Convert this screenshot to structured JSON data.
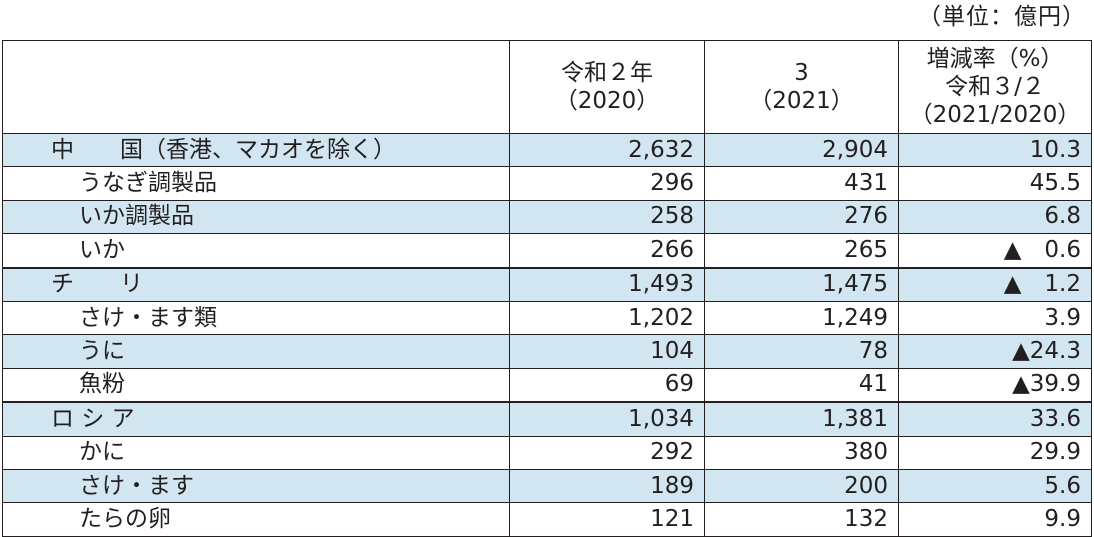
{
  "unit_label": "（単位：億円）",
  "header": {
    "col_2020": [
      "令和２年",
      "（2020）"
    ],
    "col_2021": [
      "3",
      "（2021）"
    ],
    "col_rate": [
      "増減率（%）",
      "令和３/２",
      "（2021/2020）"
    ]
  },
  "rows": [
    {
      "name": "中　　国（香港、マカオを除く）",
      "v2020": "2,632",
      "v2021": "2,904",
      "rate": "10.3",
      "shade": true,
      "sub": false
    },
    {
      "name": "うなぎ調製品",
      "v2020": "296",
      "v2021": "431",
      "rate": "45.5",
      "shade": false,
      "sub": true
    },
    {
      "name": "いか調製品",
      "v2020": "258",
      "v2021": "276",
      "rate": "6.8",
      "shade": true,
      "sub": true
    },
    {
      "name": "いか",
      "v2020": "266",
      "v2021": "265",
      "rate": "▲　0.6",
      "shade": false,
      "sub": true
    },
    {
      "name": "チ　　リ",
      "v2020": "1,493",
      "v2021": "1,475",
      "rate": "▲　1.2",
      "shade": true,
      "sub": false
    },
    {
      "name": "さけ・ます類",
      "v2020": "1,202",
      "v2021": "1,249",
      "rate": "3.9",
      "shade": false,
      "sub": true
    },
    {
      "name": "うに",
      "v2020": "104",
      "v2021": "78",
      "rate": "▲24.3",
      "shade": true,
      "sub": true
    },
    {
      "name": "魚粉",
      "v2020": "69",
      "v2021": "41",
      "rate": "▲39.9",
      "shade": false,
      "sub": true
    },
    {
      "name": "ロ シ ア",
      "v2020": "1,034",
      "v2021": "1,381",
      "rate": "33.6",
      "shade": true,
      "sub": false
    },
    {
      "name": "かに",
      "v2020": "292",
      "v2021": "380",
      "rate": "29.9",
      "shade": false,
      "sub": true
    },
    {
      "name": "さけ・ます",
      "v2020": "189",
      "v2021": "200",
      "rate": "5.6",
      "shade": true,
      "sub": true
    },
    {
      "name": "たらの卵",
      "v2020": "121",
      "v2021": "132",
      "rate": "9.9",
      "shade": false,
      "sub": true
    }
  ]
}
